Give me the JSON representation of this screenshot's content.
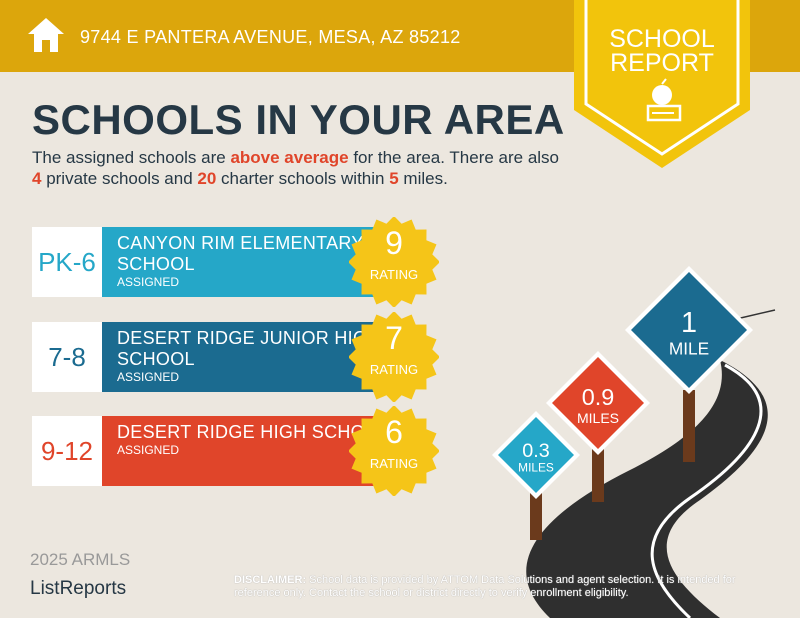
{
  "header": {
    "address": "9744 E PANTERA AVENUE, MESA, AZ 85212",
    "icon": "home-icon"
  },
  "badge": {
    "line1": "SCHOOL",
    "line2": "REPORT",
    "icon": "apple-books-icon"
  },
  "title": "SCHOOLS IN YOUR AREA",
  "intro": {
    "p1": "The assigned schools are ",
    "avg": "above average",
    "p2": " for the area. There are also ",
    "private": "4",
    "p3": " private schools and ",
    "charter": "20",
    "p4": " charter schools within ",
    "miles": "5",
    "p5": " miles."
  },
  "schools": [
    {
      "grade": "PK-6",
      "name": "CANYON RIM ELEMENTARY SCHOOL",
      "status": "ASSIGNED",
      "rating": "9",
      "rating_label": "RATING",
      "color": "#25a7c8"
    },
    {
      "grade": "7-8",
      "name": "DESERT RIDGE JUNIOR HIGH SCHOOL",
      "status": "ASSIGNED",
      "rating": "7",
      "rating_label": "RATING",
      "color": "#1b6b90"
    },
    {
      "grade": "9-12",
      "name": "DESERT RIDGE HIGH SCHOOL",
      "status": "ASSIGNED",
      "rating": "6",
      "rating_label": "RATING",
      "color": "#e0452a"
    }
  ],
  "signs": [
    {
      "num": "0.3",
      "unit": "MILES",
      "color": "#25a7c8"
    },
    {
      "num": "0.9",
      "unit": "MILES",
      "color": "#e0452a"
    },
    {
      "num": "1",
      "unit": "MILE",
      "color": "#1b6b90"
    }
  ],
  "footer": {
    "logo": "ListReports",
    "watermark": "2025 ARMLS",
    "disclaimer_label": "DISCLAIMER:",
    "disclaimer": " School data is provided by ATTOM Data Solutions and agent selection. It is intended for reference only. Contact the school or district directly to verify enrollment eligibility."
  }
}
